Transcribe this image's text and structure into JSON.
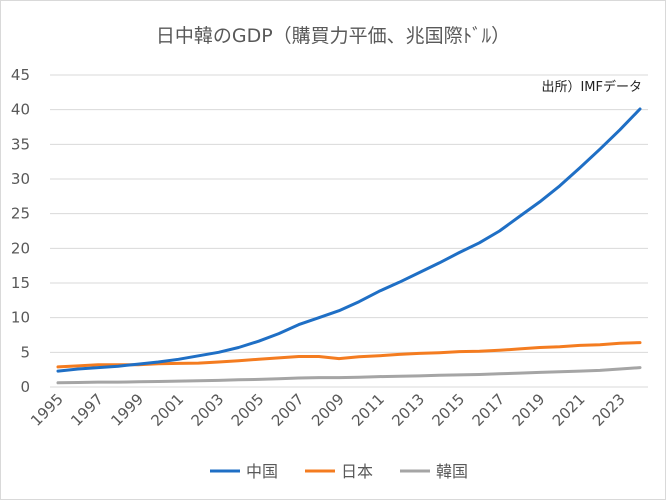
{
  "chart_data": {
    "type": "line",
    "title": "日中韓のGDP（購買力平価、兆国際ﾄﾞﾙ）",
    "annotation": "出所）IMFデータ",
    "xlabel": "",
    "ylabel": "",
    "x": [
      1995,
      1996,
      1997,
      1998,
      1999,
      2000,
      2001,
      2002,
      2003,
      2004,
      2005,
      2006,
      2007,
      2008,
      2009,
      2010,
      2011,
      2012,
      2013,
      2014,
      2015,
      2016,
      2017,
      2018,
      2019,
      2020,
      2021,
      2022,
      2023,
      2024
    ],
    "x_tick_labels": [
      "1995",
      "1997",
      "1999",
      "2001",
      "2003",
      "2005",
      "2007",
      "2009",
      "2011",
      "2013",
      "2015",
      "2017",
      "2019",
      "2021",
      "2023"
    ],
    "ylim": [
      0,
      45
    ],
    "y_tick_labels": [
      "0",
      "5",
      "10",
      "15",
      "20",
      "25",
      "30",
      "35",
      "40",
      "45"
    ],
    "grid": true,
    "legend_position": "bottom",
    "series": [
      {
        "name": "中国",
        "color": "#1f6fc5",
        "values": [
          2.3,
          2.6,
          2.8,
          3.0,
          3.3,
          3.6,
          4.0,
          4.5,
          5.0,
          5.7,
          6.6,
          7.7,
          9.0,
          10.0,
          11.0,
          12.3,
          13.8,
          15.1,
          16.5,
          17.9,
          19.4,
          20.8,
          22.5,
          24.6,
          26.7,
          29.0,
          31.6,
          34.3,
          37.1,
          40.1
        ]
      },
      {
        "name": "日本",
        "color": "#f47c20",
        "values": [
          2.9,
          3.05,
          3.2,
          3.2,
          3.2,
          3.35,
          3.4,
          3.45,
          3.6,
          3.8,
          4.0,
          4.2,
          4.4,
          4.4,
          4.1,
          4.35,
          4.5,
          4.7,
          4.85,
          4.95,
          5.1,
          5.15,
          5.3,
          5.5,
          5.7,
          5.8,
          6.0,
          6.1,
          6.3,
          6.4
        ]
      },
      {
        "name": "韓国",
        "color": "#a5a5a5",
        "values": [
          0.6,
          0.65,
          0.7,
          0.7,
          0.75,
          0.8,
          0.85,
          0.9,
          0.95,
          1.05,
          1.1,
          1.2,
          1.3,
          1.35,
          1.35,
          1.4,
          1.5,
          1.55,
          1.6,
          1.7,
          1.75,
          1.8,
          1.9,
          2.0,
          2.1,
          2.2,
          2.3,
          2.4,
          2.6,
          2.8
        ]
      }
    ]
  }
}
